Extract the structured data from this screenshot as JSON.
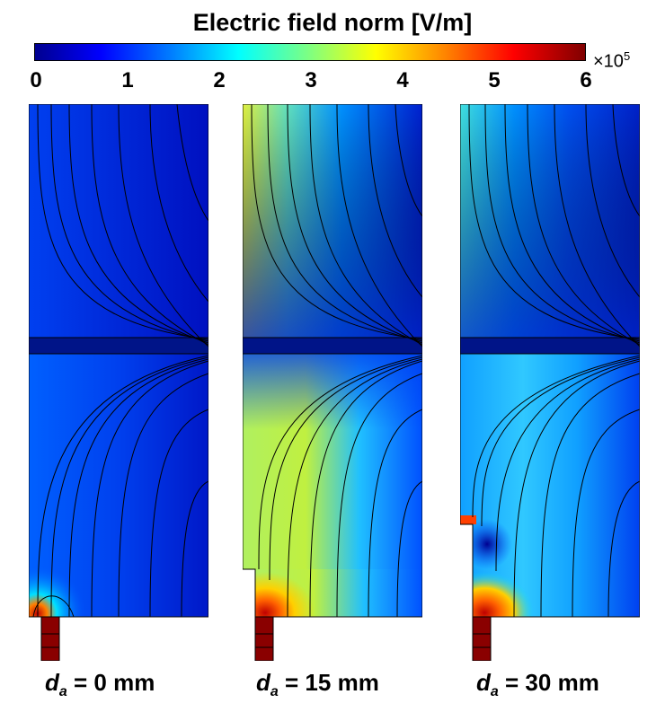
{
  "title": "Electric field norm [V/m]",
  "colorbar": {
    "ticks": [
      "0",
      "1",
      "2",
      "3",
      "4",
      "5",
      "6"
    ],
    "multiplier_base": "×10",
    "multiplier_exp": "5",
    "colormap": "jet"
  },
  "panels": [
    {
      "label_main": "d",
      "label_sub": "a",
      "label_value": " = 0 mm"
    },
    {
      "label_main": "d",
      "label_sub": "a",
      "label_value": " = 15 mm"
    },
    {
      "label_main": "d",
      "label_sub": "a",
      "label_value": " = 30 mm"
    }
  ]
}
